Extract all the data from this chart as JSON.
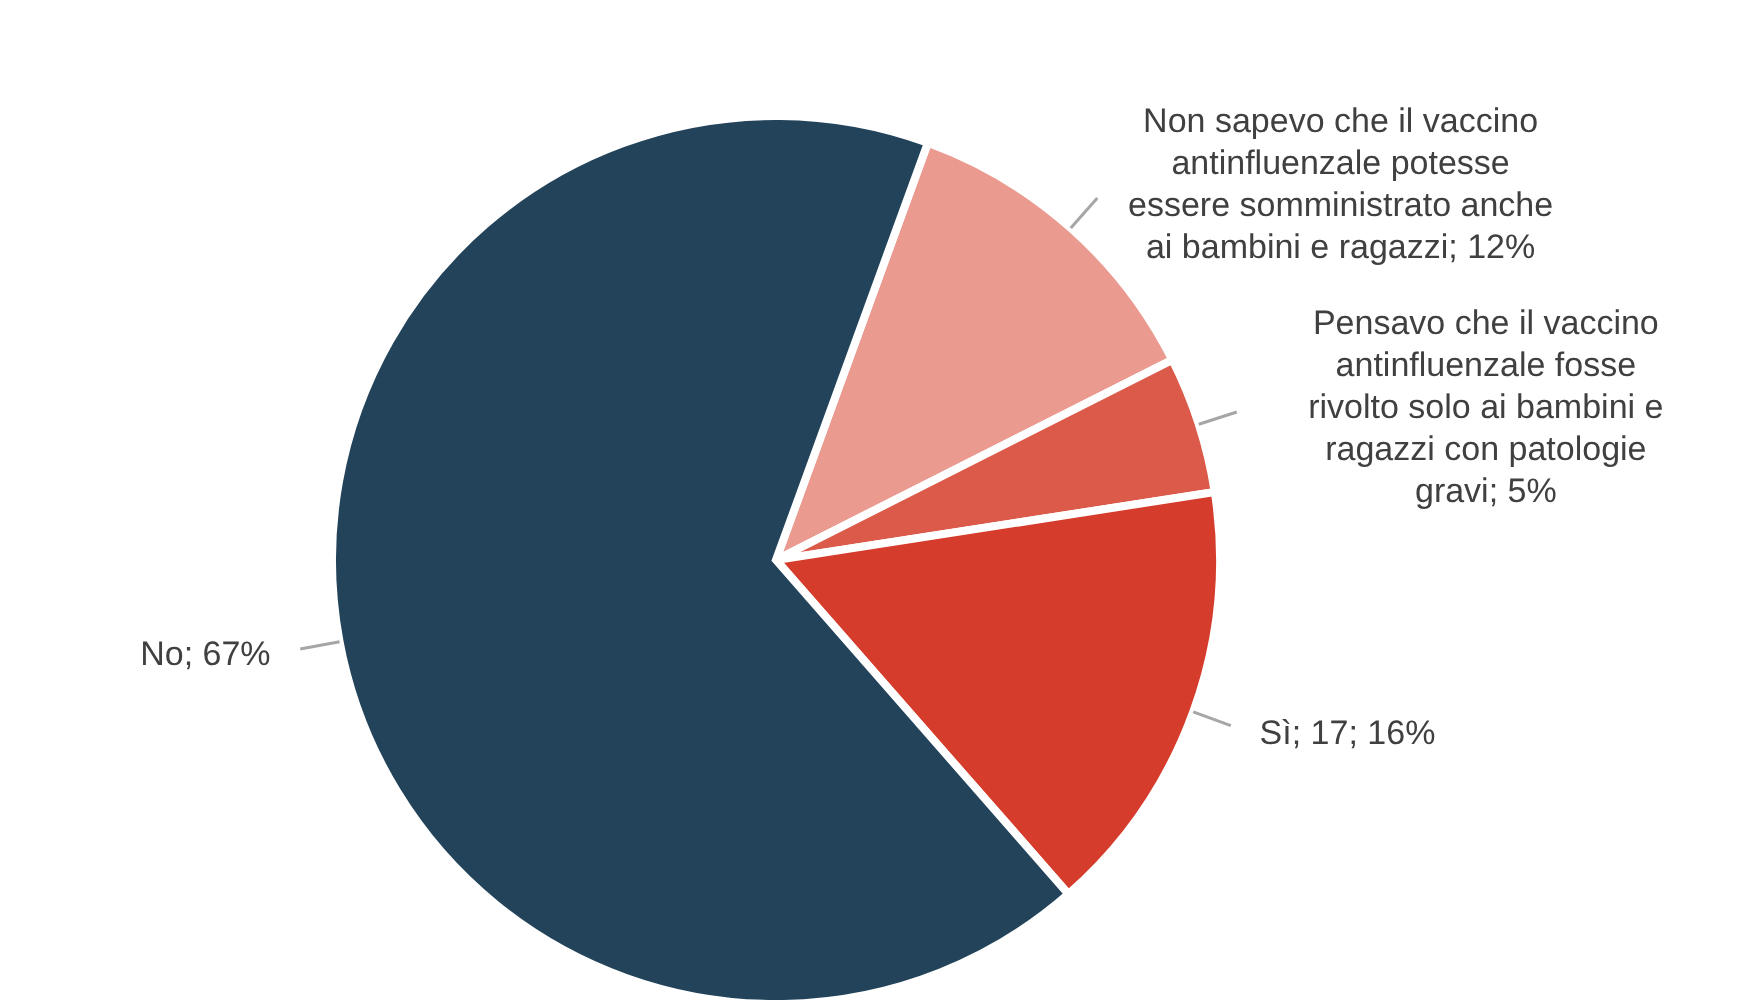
{
  "chart_data": {
    "type": "pie",
    "categories": [
      "Non sapevo che il vaccino antinfluenzale potesse essere somministrato anche ai bambini e ragazzi; 12%",
      "Pensavo che il vaccino antinfluenzale fosse rivolto solo ai bambini e ragazzi con patologie gravi; 5%",
      "Sì; 17; 16%",
      "No; 67%"
    ],
    "values": [
      12,
      5,
      16,
      67
    ],
    "colors": [
      "#eb9a90",
      "#dc5a4a",
      "#d63c2b",
      "#22435a"
    ],
    "legend": false
  }
}
